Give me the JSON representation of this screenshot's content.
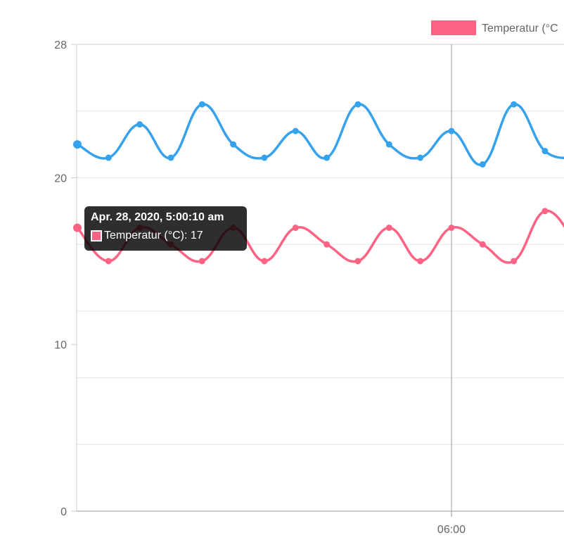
{
  "legend": {
    "label": "Temperatur (°C"
  },
  "tooltip": {
    "title": "Apr. 28, 2020, 5:00:10 am",
    "body": "Temperatur (°C): 17",
    "swatch_color": "#ff6384"
  },
  "chart_data": {
    "type": "line",
    "ylim": [
      0,
      28
    ],
    "y_ticks": [
      {
        "value": 0,
        "label": "0"
      },
      {
        "value": 10,
        "label": "10"
      },
      {
        "value": 20,
        "label": "20"
      },
      {
        "value": 28,
        "label": "28"
      }
    ],
    "y_gridlines": [
      4,
      8,
      12,
      16,
      20,
      24
    ],
    "x_ticks": [
      {
        "value": "06:00",
        "label": "06:00"
      }
    ],
    "x_time_of_first_point": "05:00:10",
    "x_time_of_06_00_point": 12,
    "series": [
      {
        "name": "Temperatur (°C)",
        "color": "#ff6384",
        "values": [
          17,
          15,
          17,
          16,
          15,
          17,
          15,
          17,
          16,
          15,
          17,
          15,
          17,
          16,
          15,
          18,
          16
        ]
      },
      {
        "color": "#36a2eb",
        "values": [
          22,
          21.2,
          23.2,
          21.2,
          24.4,
          22,
          21.2,
          22.8,
          21.2,
          24.4,
          22,
          21.2,
          22.8,
          20.8,
          24.4,
          21.6,
          21.2
        ]
      }
    ]
  }
}
